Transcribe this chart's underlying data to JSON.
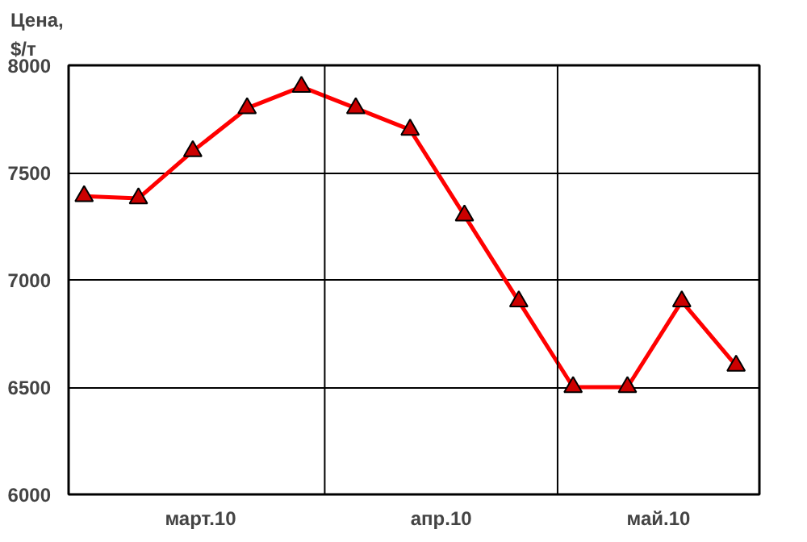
{
  "chart_data": {
    "type": "line",
    "ylabel": "Цена,\n$/т",
    "x": [
      "2010-03-01",
      "2010-03-08",
      "2010-03-15",
      "2010-03-22",
      "2010-03-29",
      "2010-04-05",
      "2010-04-12",
      "2010-04-19",
      "2010-04-26",
      "2010-05-03",
      "2010-05-10",
      "2010-05-17",
      "2010-05-24"
    ],
    "series": [
      {
        "color": "#ff0000",
        "values": [
          7390,
          7380,
          7600,
          7800,
          7900,
          7800,
          7700,
          7300,
          6900,
          6500,
          6500,
          6900,
          6600
        ]
      }
    ],
    "xlim": [
      "2010-02-27",
      "2010-05-27"
    ],
    "xticks": [
      {
        "value": "2010-03-16",
        "label": "март.10"
      },
      {
        "value": "2010-04-16",
        "label": "апр.10"
      },
      {
        "value": "2010-05-14",
        "label": "май.10"
      }
    ],
    "ylim": [
      6000,
      8000
    ],
    "yticks": [
      6000,
      6500,
      7000,
      7500,
      8000
    ],
    "ref_lines": [
      {
        "axis": "x",
        "value": "2010-04-01",
        "label": null,
        "color": "#000000"
      },
      {
        "axis": "x",
        "value": "2010-05-01",
        "label": null,
        "color": "#000000"
      }
    ],
    "grid": "y",
    "marker": "triangle",
    "line_style": "solid"
  }
}
